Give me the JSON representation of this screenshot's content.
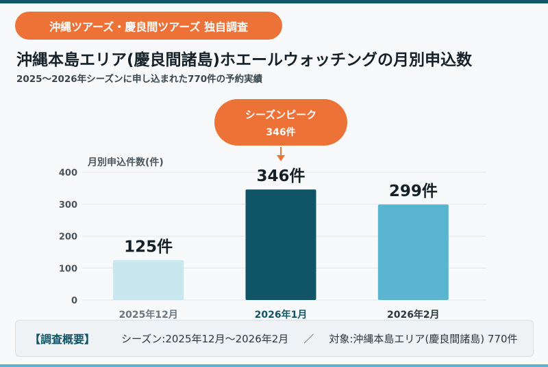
{
  "badge": "沖縄ツアーズ・慶良間ツアーズ 独自調査",
  "title": "沖縄本島エリア(慶良間諸島)ホエールウォッチングの月別申込数",
  "subtitle": "2025〜2026年シーズンに申し込まれた770件の予約実績",
  "summary": {
    "label": "【調査概要】",
    "season": "シーズン:2025年12月〜2026年2月",
    "separator": "／",
    "target": "対象:沖縄本島エリア(慶良間諸島) 770件"
  },
  "chart_data": {
    "type": "bar",
    "ylabel": "月別申込件数(件)",
    "ylim": [
      0,
      400
    ],
    "yticks": [
      0,
      100,
      200,
      300,
      400
    ],
    "categories": [
      "2025年12月",
      "2026年1月",
      "2026年2月"
    ],
    "values": [
      125,
      346,
      299
    ],
    "value_labels": [
      "125件",
      "346件",
      "299件"
    ],
    "colors": [
      "#c8e7ef",
      "#0f5567",
      "#5ab6d0"
    ],
    "category_colors": [
      "#6b7780",
      "#0f5567",
      "#2a363e"
    ],
    "grid": true,
    "annotation": {
      "category": "2026年1月",
      "line1": "シーズンピーク",
      "line2": "346件",
      "color": "#ec7237"
    }
  }
}
